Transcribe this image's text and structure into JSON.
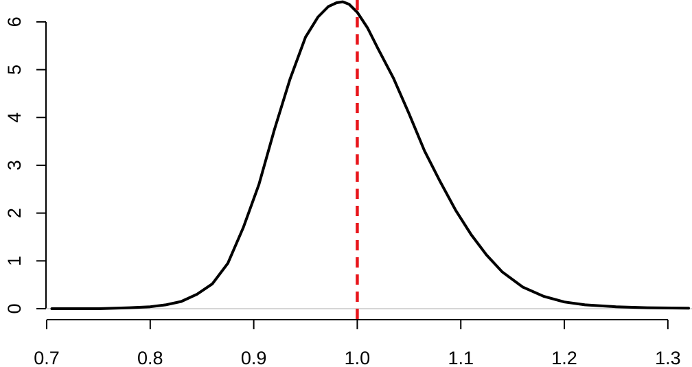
{
  "chart_data": {
    "type": "line",
    "title": "",
    "xlabel": "",
    "ylabel": "",
    "xlim": [
      0.7,
      1.32
    ],
    "ylim": [
      0,
      6.4
    ],
    "x_ticks": [
      0.7,
      0.8,
      0.9,
      1.0,
      1.1,
      1.2,
      1.3
    ],
    "x_tick_labels": [
      "0.7",
      "0.8",
      "0.9",
      "1.0",
      "1.1",
      "1.2",
      "1.3"
    ],
    "y_ticks": [
      0,
      1,
      2,
      3,
      4,
      5,
      6
    ],
    "y_tick_labels": [
      "0",
      "1",
      "2",
      "3",
      "4",
      "5",
      "6"
    ],
    "grid": false,
    "legend": "none",
    "series": [
      {
        "color": "#000000",
        "style": "solid",
        "x": [
          0.705,
          0.75,
          0.78,
          0.8,
          0.815,
          0.83,
          0.845,
          0.86,
          0.875,
          0.89,
          0.905,
          0.92,
          0.935,
          0.95,
          0.962,
          0.972,
          0.98,
          0.986,
          0.992,
          1.0,
          1.01,
          1.02,
          1.035,
          1.05,
          1.065,
          1.08,
          1.095,
          1.11,
          1.125,
          1.14,
          1.16,
          1.18,
          1.2,
          1.22,
          1.25,
          1.28,
          1.32
        ],
        "y": [
          0.0,
          0.0,
          0.02,
          0.04,
          0.08,
          0.15,
          0.3,
          0.52,
          0.95,
          1.7,
          2.6,
          3.75,
          4.8,
          5.68,
          6.1,
          6.32,
          6.4,
          6.42,
          6.37,
          6.2,
          5.87,
          5.44,
          4.82,
          4.08,
          3.3,
          2.66,
          2.06,
          1.55,
          1.12,
          0.77,
          0.45,
          0.26,
          0.14,
          0.08,
          0.04,
          0.02,
          0.01
        ]
      }
    ],
    "reference_lines": [
      {
        "orientation": "vertical",
        "x": 1.0,
        "color": "#e8151b",
        "style": "dashed"
      },
      {
        "orientation": "horizontal",
        "y": 0,
        "color": "#bebebe",
        "style": "solid"
      }
    ]
  }
}
